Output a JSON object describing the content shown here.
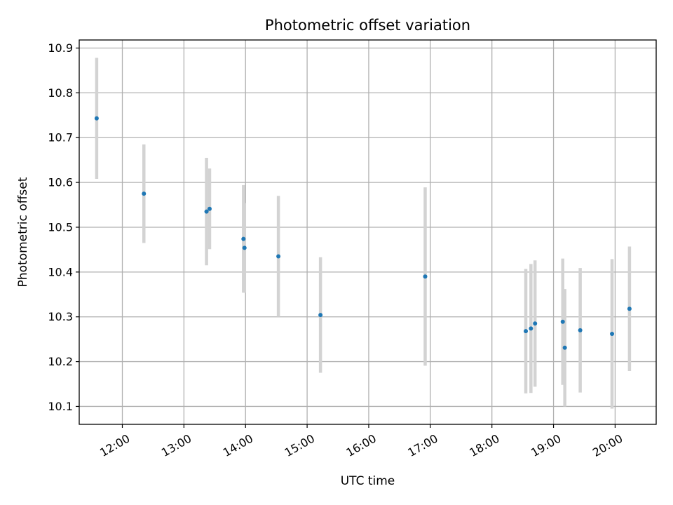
{
  "chart_data": {
    "type": "scatter",
    "title": "Photometric offset variation",
    "xlabel": "UTC time",
    "ylabel": "Photometric offset",
    "xlim": [
      "11:18",
      "20:40"
    ],
    "ylim": [
      10.06,
      10.918
    ],
    "grid": true,
    "x_ticks": [
      "12:00",
      "13:00",
      "14:00",
      "15:00",
      "16:00",
      "17:00",
      "18:00",
      "19:00",
      "20:00"
    ],
    "y_ticks": [
      "10.1",
      "10.2",
      "10.3",
      "10.4",
      "10.5",
      "10.6",
      "10.7",
      "10.8",
      "10.9"
    ],
    "points": [
      {
        "x": "11:35",
        "y": 10.743,
        "err": 0.135
      },
      {
        "x": "12:21",
        "y": 10.575,
        "err": 0.11
      },
      {
        "x": "13:22",
        "y": 10.535,
        "err": 0.12
      },
      {
        "x": "13:25",
        "y": 10.541,
        "err": 0.09
      },
      {
        "x": "13:58",
        "y": 10.474,
        "err": 0.12
      },
      {
        "x": "13:59",
        "y": 10.454,
        "err": 0.1
      },
      {
        "x": "14:32",
        "y": 10.435,
        "err": 0.135
      },
      {
        "x": "15:13",
        "y": 10.304,
        "err": 0.129
      },
      {
        "x": "16:55",
        "y": 10.39,
        "err": 0.199
      },
      {
        "x": "18:33",
        "y": 10.268,
        "err": 0.139
      },
      {
        "x": "18:38",
        "y": 10.274,
        "err": 0.144
      },
      {
        "x": "18:42",
        "y": 10.285,
        "err": 0.141
      },
      {
        "x": "19:09",
        "y": 10.289,
        "err": 0.141
      },
      {
        "x": "19:11",
        "y": 10.231,
        "err": 0.131
      },
      {
        "x": "19:26",
        "y": 10.27,
        "err": 0.139
      },
      {
        "x": "19:57",
        "y": 10.262,
        "err": 0.167
      },
      {
        "x": "20:14",
        "y": 10.318,
        "err": 0.139
      }
    ],
    "colors": {
      "point": "#1f77b4",
      "errorbar": "#d3d3d3",
      "grid": "#b0b0b0",
      "axis": "#000000"
    }
  }
}
